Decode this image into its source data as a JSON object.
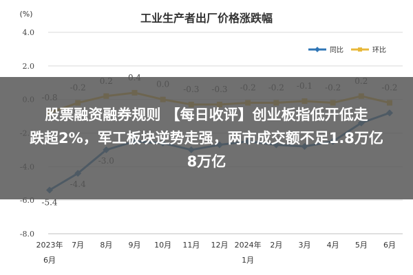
{
  "chart_data": {
    "type": "line",
    "title": "工业生产者出厂价格涨跌幅",
    "ylabel": "(%)",
    "ylim": [
      -8.0,
      4.0
    ],
    "yticks": [
      "4.0",
      "2.0",
      "0.0",
      "-2.0",
      "-4.0",
      "-6.0",
      "-8.0"
    ],
    "categories": [
      "2023年\n6月",
      "7月",
      "8月",
      "9月",
      "10月",
      "11月",
      "12月",
      "2024年\n1月",
      "2月",
      "3月",
      "4月",
      "5月",
      "6月"
    ],
    "series": [
      {
        "name": "同比",
        "color": "#2e75b6",
        "values": [
          -5.4,
          -4.4,
          -3.0,
          -2.5,
          -2.6,
          -3.0,
          -2.7,
          -2.5,
          -2.7,
          -2.8,
          -2.5,
          -1.4,
          -0.8
        ],
        "labels": [
          "-5.4",
          "-4.4",
          "-3.0",
          null,
          null,
          null,
          null,
          null,
          null,
          null,
          null,
          null,
          null
        ]
      },
      {
        "name": "环比",
        "color": "#e8b83a",
        "values": [
          -0.8,
          -0.2,
          0.2,
          0.4,
          0.0,
          -0.3,
          -0.3,
          -0.2,
          -0.2,
          -0.1,
          -0.2,
          0.2,
          -0.2
        ],
        "labels": [
          "-0.8",
          "-0.2",
          "0.2",
          "0.4",
          "0.0",
          "-0.3",
          "-0.3",
          "-0.2",
          "-0.2",
          "-0.1",
          "-0.2",
          "0.2",
          "-0.2"
        ]
      }
    ]
  },
  "banner": {
    "text": "股票融资融券规则 【每日收评】创业板指低开低走\n跌超2%，军工板块逆势走强，两市成交额不足1.8万亿\n8万亿"
  }
}
